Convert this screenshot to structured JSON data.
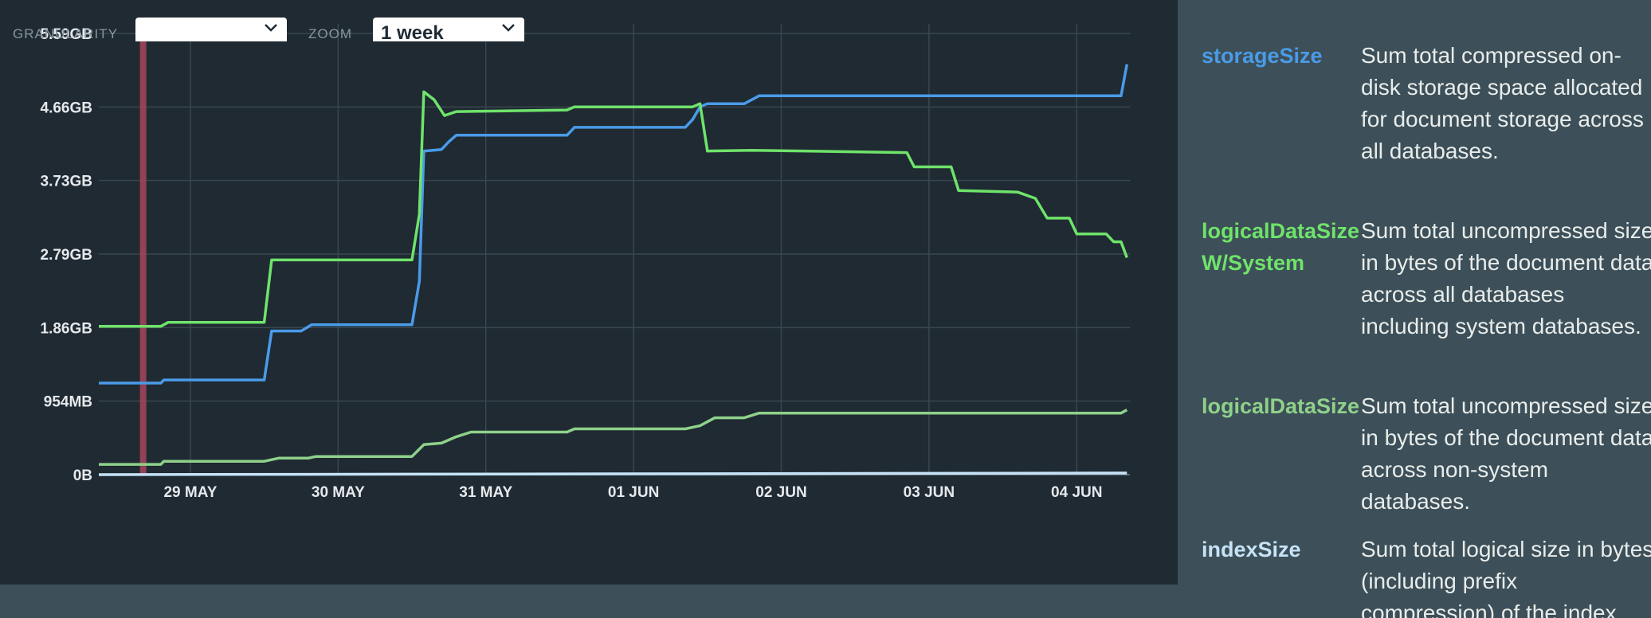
{
  "controls": {
    "granularity_label": "GRANULARITY",
    "granularity_value": "",
    "zoom_label": "ZOOM",
    "zoom_value": "1 week"
  },
  "colors": {
    "storageSize": "#4a9be8",
    "logicalDataSizeWSystem": "#6fe36a",
    "logicalDataSize": "#8fd18a",
    "indexSize": "#c6e3f7",
    "marker": "#a8455a"
  },
  "legend": [
    {
      "name": "storageSize",
      "desc": "Sum total compressed on-disk storage space allocated for document storage across all databases.",
      "color": "#4a9be8"
    },
    {
      "name": "logicalDataSize W/System",
      "desc": "Sum total uncompressed size in bytes of the document data across all databases including system databases.",
      "color": "#6fe36a"
    },
    {
      "name": "logicalDataSize",
      "desc": "Sum total uncompressed size in bytes of the document data across non-system databases.",
      "color": "#8fd18a"
    },
    {
      "name": "indexSize",
      "desc": "Sum total logical size in bytes (including prefix compression) of the index",
      "color": "#c6e3f7"
    }
  ],
  "chart_data": {
    "type": "line",
    "x_ticks": [
      "29 MAY",
      "30 MAY",
      "31 MAY",
      "01 JUN",
      "02 JUN",
      "03 JUN",
      "04 JUN"
    ],
    "y_ticks": [
      "0B",
      "954MB",
      "1.86GB",
      "2.79GB",
      "3.73GB",
      "4.66GB",
      "5.59GB"
    ],
    "y_unit": "GB",
    "ylim": [
      0,
      5.59
    ],
    "xlim": [
      -0.62,
      6.36
    ],
    "grid": true,
    "marker_x": -0.32,
    "series": [
      {
        "name": "storageSize",
        "color": "#4a9be8",
        "points": [
          [
            -0.62,
            1.16
          ],
          [
            -0.2,
            1.16
          ],
          [
            -0.18,
            1.2
          ],
          [
            0.5,
            1.2
          ],
          [
            0.55,
            1.82
          ],
          [
            0.75,
            1.82
          ],
          [
            0.82,
            1.9
          ],
          [
            1.5,
            1.9
          ],
          [
            1.55,
            2.45
          ],
          [
            1.58,
            4.1
          ],
          [
            1.7,
            4.12
          ],
          [
            1.75,
            4.22
          ],
          [
            1.8,
            4.3
          ],
          [
            2.55,
            4.3
          ],
          [
            2.6,
            4.4
          ],
          [
            3.35,
            4.4
          ],
          [
            3.4,
            4.5
          ],
          [
            3.45,
            4.66
          ],
          [
            3.5,
            4.7
          ],
          [
            3.75,
            4.7
          ],
          [
            3.85,
            4.8
          ],
          [
            6.3,
            4.8
          ],
          [
            6.34,
            5.2
          ]
        ]
      },
      {
        "name": "logicalDataSize W/System",
        "color": "#6fe36a",
        "points": [
          [
            -0.62,
            1.88
          ],
          [
            -0.2,
            1.88
          ],
          [
            -0.15,
            1.93
          ],
          [
            0.5,
            1.93
          ],
          [
            0.55,
            2.72
          ],
          [
            1.5,
            2.72
          ],
          [
            1.55,
            3.3
          ],
          [
            1.58,
            4.85
          ],
          [
            1.65,
            4.75
          ],
          [
            1.72,
            4.55
          ],
          [
            1.8,
            4.6
          ],
          [
            2.55,
            4.62
          ],
          [
            2.6,
            4.66
          ],
          [
            3.4,
            4.66
          ],
          [
            3.45,
            4.7
          ],
          [
            3.5,
            4.1
          ],
          [
            3.8,
            4.11
          ],
          [
            4.85,
            4.08
          ],
          [
            4.9,
            3.9
          ],
          [
            5.15,
            3.9
          ],
          [
            5.2,
            3.6
          ],
          [
            5.6,
            3.58
          ],
          [
            5.72,
            3.5
          ],
          [
            5.8,
            3.25
          ],
          [
            5.95,
            3.25
          ],
          [
            6.0,
            3.05
          ],
          [
            6.2,
            3.05
          ],
          [
            6.25,
            2.95
          ],
          [
            6.3,
            2.95
          ],
          [
            6.34,
            2.75
          ]
        ]
      },
      {
        "name": "logicalDataSize",
        "color": "#8fd18a",
        "points": [
          [
            -0.62,
            0.13
          ],
          [
            -0.2,
            0.13
          ],
          [
            -0.18,
            0.17
          ],
          [
            0.5,
            0.17
          ],
          [
            0.6,
            0.21
          ],
          [
            0.8,
            0.21
          ],
          [
            0.85,
            0.23
          ],
          [
            1.5,
            0.23
          ],
          [
            1.58,
            0.38
          ],
          [
            1.7,
            0.4
          ],
          [
            1.8,
            0.48
          ],
          [
            1.9,
            0.54
          ],
          [
            2.55,
            0.54
          ],
          [
            2.6,
            0.58
          ],
          [
            3.35,
            0.58
          ],
          [
            3.45,
            0.62
          ],
          [
            3.55,
            0.72
          ],
          [
            3.75,
            0.72
          ],
          [
            3.85,
            0.78
          ],
          [
            6.3,
            0.78
          ],
          [
            6.34,
            0.82
          ]
        ]
      },
      {
        "name": "indexSize",
        "color": "#c6e3f7",
        "points": [
          [
            -0.62,
            0.0
          ],
          [
            6.34,
            0.02
          ]
        ]
      }
    ]
  }
}
